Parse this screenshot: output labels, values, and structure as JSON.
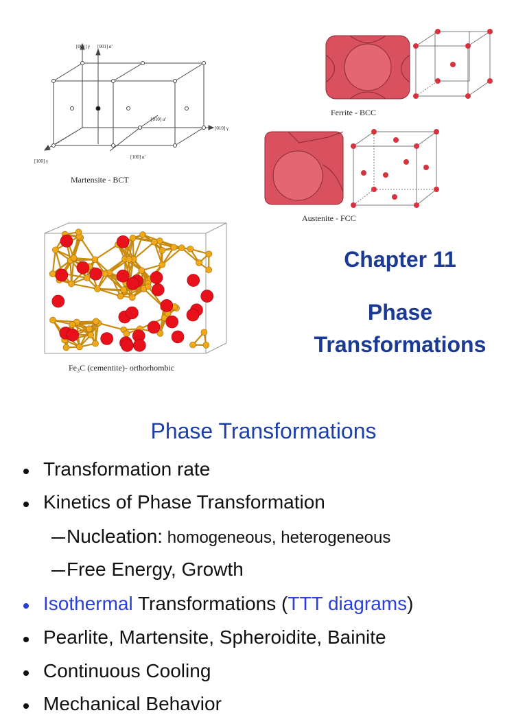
{
  "figures": {
    "martensite": {
      "axes": [
        "[001] γ",
        "[001] α'",
        "[010] α'",
        "[010] γ",
        "[100] γ",
        "[100] α'"
      ],
      "caption": "Martensite - BCT"
    },
    "ferrite": {
      "caption": "Ferrite - BCC"
    },
    "austenite": {
      "caption": "Austenite - FCC"
    },
    "cementite": {
      "caption": "Fe₃C (cementite)- orthorhombic"
    }
  },
  "title": {
    "chapter": "Chapter 11",
    "lines": [
      "Phase",
      "Transformations"
    ]
  },
  "outline": {
    "heading": "Phase Transformations",
    "items": [
      {
        "parts": [
          "Transformation rate"
        ]
      },
      {
        "parts": [
          "Kinetics of Phase Transformation"
        ],
        "subitems": [
          {
            "parts": [
              "Nucleation:",
              " homogeneous, heterogeneous"
            ]
          },
          {
            "parts": [
              "Free Energy, Growth"
            ]
          }
        ]
      },
      {
        "parts": [
          "Isothermal",
          " Transformations (",
          "TTT diagrams",
          ")"
        ]
      },
      {
        "parts": [
          "Pearlite, Martensite, Spheroidite, Bainite"
        ]
      },
      {
        "parts": [
          "Continuous Cooling"
        ]
      },
      {
        "parts": [
          "Mechanical Behavior"
        ]
      }
    ]
  }
}
